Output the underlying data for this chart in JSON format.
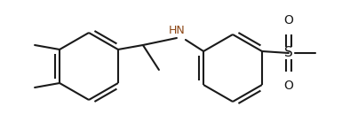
{
  "bg_color": "#ffffff",
  "line_color": "#1a1a1a",
  "hn_color": "#8B4513",
  "lw": 1.5,
  "figsize": [
    3.85,
    1.55
  ],
  "dpi": 100,
  "xlim": [
    0,
    385
  ],
  "ylim": [
    0,
    155
  ]
}
